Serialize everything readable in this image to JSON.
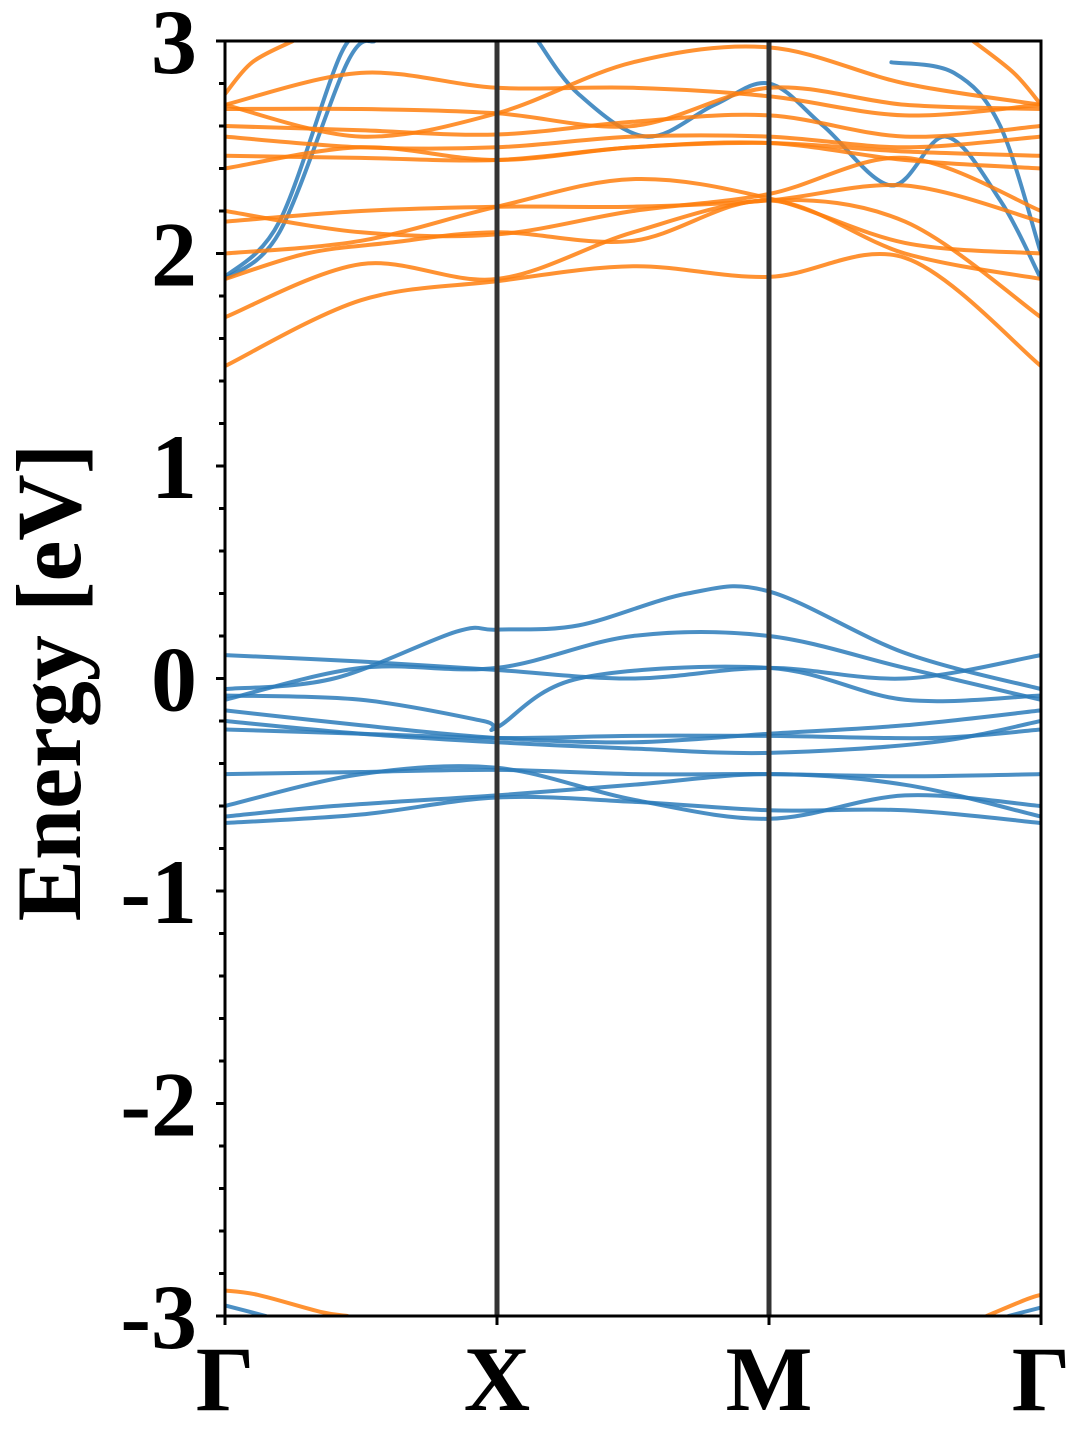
{
  "chart_data": {
    "type": "line",
    "title": "",
    "xlabel": "",
    "ylabel": "Energy [eV]",
    "ylim": [
      -3,
      3
    ],
    "xlim": [
      0,
      3
    ],
    "y_ticks": [
      "3",
      "2",
      "1",
      "0",
      "-1",
      "-2",
      "-3"
    ],
    "x_ticks": [
      {
        "label": "Γ",
        "x": 0
      },
      {
        "label": "X",
        "x": 1
      },
      {
        "label": "M",
        "x": 2
      },
      {
        "label": "Γ",
        "x": 3
      }
    ],
    "grid": false,
    "legend": "none",
    "colors": {
      "valence": "#2b7bba",
      "conduction": "#ff7f0e",
      "kpath_line": "#333333",
      "axis": "#000000"
    },
    "series": [
      {
        "group": "valence",
        "x": [
          0,
          0.5,
          1,
          1.5,
          2,
          2.5,
          3
        ],
        "y": [
          0.11,
          0.08,
          0.04,
          0.0,
          0.05,
          0.0,
          0.11
        ]
      },
      {
        "group": "valence",
        "x": [
          0,
          0.4,
          0.85,
          1,
          1.3,
          1.7,
          2,
          2.5,
          3
        ],
        "y": [
          -0.05,
          0.0,
          0.22,
          0.23,
          0.25,
          0.4,
          0.41,
          0.12,
          -0.05
        ]
      },
      {
        "group": "valence",
        "x": [
          0,
          0.5,
          1,
          1.5,
          2,
          2.5,
          3
        ],
        "y": [
          -0.1,
          0.05,
          0.05,
          0.2,
          0.2,
          0.05,
          -0.1
        ]
      },
      {
        "group": "valence",
        "x": [
          0,
          0.5,
          0.95,
          1,
          1.3,
          2,
          2.5,
          3
        ],
        "y": [
          -0.08,
          -0.1,
          -0.2,
          -0.23,
          0.0,
          0.05,
          -0.1,
          -0.08
        ]
      },
      {
        "group": "valence",
        "x": [
          0,
          0.5,
          1,
          1.5,
          2,
          2.5,
          3
        ],
        "y": [
          -0.15,
          -0.22,
          -0.28,
          -0.3,
          -0.26,
          -0.22,
          -0.15
        ]
      },
      {
        "group": "valence",
        "x": [
          0,
          0.5,
          1,
          1.5,
          2,
          2.6,
          3
        ],
        "y": [
          -0.2,
          -0.26,
          -0.3,
          -0.33,
          -0.35,
          -0.3,
          -0.2
        ]
      },
      {
        "group": "valence",
        "x": [
          0,
          0.5,
          1,
          1.5,
          2,
          2.6,
          3
        ],
        "y": [
          -0.24,
          -0.26,
          -0.28,
          -0.27,
          -0.27,
          -0.28,
          -0.24
        ]
      },
      {
        "group": "valence",
        "x": [
          0,
          0.5,
          1,
          1.5,
          2,
          2.5,
          3
        ],
        "y": [
          -0.45,
          -0.44,
          -0.43,
          -0.45,
          -0.45,
          -0.46,
          -0.45
        ]
      },
      {
        "group": "valence",
        "x": [
          0,
          0.5,
          1,
          1.5,
          2,
          2.5,
          3
        ],
        "y": [
          -0.6,
          -0.45,
          -0.42,
          -0.57,
          -0.66,
          -0.55,
          -0.6
        ]
      },
      {
        "group": "valence",
        "x": [
          0,
          0.4,
          1,
          1.5,
          2,
          2.5,
          3
        ],
        "y": [
          -0.65,
          -0.6,
          -0.55,
          -0.5,
          -0.45,
          -0.5,
          -0.65
        ]
      },
      {
        "group": "valence",
        "x": [
          0,
          0.5,
          1,
          1.5,
          2,
          2.5,
          3
        ],
        "y": [
          -0.68,
          -0.64,
          -0.56,
          -0.58,
          -0.62,
          -0.62,
          -0.68
        ]
      },
      {
        "group": "valence",
        "x": [
          0,
          0.2,
          0.45,
          0.55
        ],
        "y": [
          1.88,
          2.1,
          2.9,
          3.0
        ]
      },
      {
        "group": "valence",
        "x": [
          0,
          0.2,
          0.43,
          0.53
        ],
        "y": [
          1.89,
          2.15,
          2.95,
          3.0
        ]
      },
      {
        "group": "valence",
        "x": [
          1.15,
          1.3,
          1.55,
          1.8,
          2,
          2.2,
          2.45,
          2.65,
          2.85,
          3
        ],
        "y": [
          3.0,
          2.75,
          2.55,
          2.7,
          2.8,
          2.6,
          2.32,
          2.55,
          2.25,
          1.88
        ]
      },
      {
        "group": "valence",
        "x": [
          2.45,
          2.68,
          2.85,
          3
        ],
        "y": [
          2.9,
          2.85,
          2.6,
          2.0
        ]
      },
      {
        "group": "valence",
        "x": [
          0,
          0.15
        ],
        "y": [
          -2.95,
          -3.0
        ]
      },
      {
        "group": "valence",
        "x": [
          2.88,
          3
        ],
        "y": [
          -3.0,
          -2.96
        ]
      },
      {
        "group": "conduction",
        "x": [
          0,
          0.5,
          1,
          1.5,
          2,
          2.5,
          3
        ],
        "y": [
          1.47,
          1.78,
          1.87,
          1.94,
          1.89,
          1.98,
          1.47
        ]
      },
      {
        "group": "conduction",
        "x": [
          0,
          0.5,
          1,
          1.5,
          2,
          2.5,
          3
        ],
        "y": [
          1.7,
          1.95,
          1.88,
          2.1,
          2.25,
          2.15,
          1.7
        ]
      },
      {
        "group": "conduction",
        "x": [
          0,
          0.3,
          0.6,
          1,
          1.5,
          2,
          2.5,
          3
        ],
        "y": [
          1.88,
          2.0,
          2.05,
          2.1,
          2.06,
          2.25,
          2.0,
          1.88
        ]
      },
      {
        "group": "conduction",
        "x": [
          0,
          0.5,
          1,
          1.5,
          2,
          2.5,
          3
        ],
        "y": [
          2.0,
          2.06,
          2.22,
          2.35,
          2.26,
          2.05,
          2.0
        ]
      },
      {
        "group": "conduction",
        "x": [
          0,
          0.5,
          1,
          1.5,
          2,
          2.5,
          3
        ],
        "y": [
          2.15,
          2.2,
          2.22,
          2.22,
          2.25,
          2.32,
          2.15
        ]
      },
      {
        "group": "conduction",
        "x": [
          0,
          0.5,
          1,
          1.5,
          2,
          2.5,
          3
        ],
        "y": [
          2.2,
          2.1,
          2.09,
          2.2,
          2.28,
          2.45,
          2.2
        ]
      },
      {
        "group": "conduction",
        "x": [
          0,
          0.5,
          1,
          1.5,
          2,
          2.5,
          3
        ],
        "y": [
          2.4,
          2.5,
          2.44,
          2.5,
          2.52,
          2.44,
          2.4
        ]
      },
      {
        "group": "conduction",
        "x": [
          0,
          0.5,
          1,
          1.5,
          2,
          2.5,
          3
        ],
        "y": [
          2.46,
          2.45,
          2.44,
          2.5,
          2.52,
          2.48,
          2.46
        ]
      },
      {
        "group": "conduction",
        "x": [
          0,
          0.5,
          1,
          1.5,
          2,
          2.5,
          3
        ],
        "y": [
          2.55,
          2.5,
          2.5,
          2.55,
          2.55,
          2.5,
          2.55
        ]
      },
      {
        "group": "conduction",
        "x": [
          0,
          0.5,
          1,
          1.5,
          2,
          2.5,
          3
        ],
        "y": [
          2.6,
          2.58,
          2.56,
          2.62,
          2.65,
          2.55,
          2.6
        ]
      },
      {
        "group": "conduction",
        "x": [
          0,
          0.5,
          1,
          1.5,
          2,
          2.5,
          3
        ],
        "y": [
          2.68,
          2.68,
          2.66,
          2.6,
          2.78,
          2.7,
          2.68
        ]
      },
      {
        "group": "conduction",
        "x": [
          0,
          0.5,
          1,
          1.5,
          2,
          2.5,
          3
        ],
        "y": [
          2.7,
          2.85,
          2.78,
          2.78,
          2.74,
          2.65,
          2.7
        ]
      },
      {
        "group": "conduction",
        "x": [
          0,
          0.5,
          1,
          1.5,
          2,
          2.5,
          3
        ],
        "y": [
          2.7,
          2.55,
          2.66,
          2.9,
          2.97,
          2.8,
          2.7
        ]
      },
      {
        "group": "conduction",
        "x": [
          0,
          0.1,
          0.25
        ],
        "y": [
          2.75,
          2.9,
          3.0
        ]
      },
      {
        "group": "conduction",
        "x": [
          2.75,
          2.9,
          3
        ],
        "y": [
          3.0,
          2.85,
          2.7
        ]
      },
      {
        "group": "conduction",
        "x": [
          0,
          0.12,
          0.35,
          0.45
        ],
        "y": [
          -2.88,
          -2.9,
          -2.98,
          -3.0
        ]
      },
      {
        "group": "conduction",
        "x": [
          2.8,
          2.95,
          3
        ],
        "y": [
          -3.0,
          -2.92,
          -2.9
        ]
      }
    ]
  }
}
